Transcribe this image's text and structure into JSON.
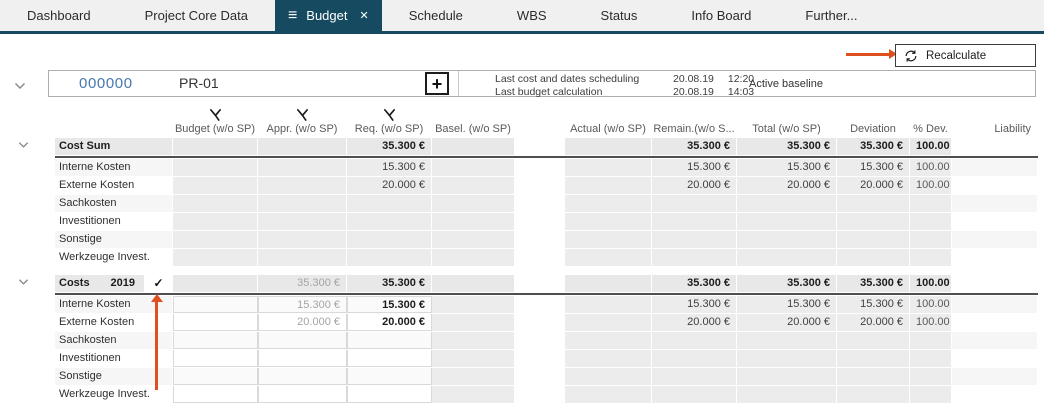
{
  "tabs": [
    {
      "label": "Dashboard"
    },
    {
      "label": "Project Core Data"
    },
    {
      "label": "Budget",
      "active": true
    },
    {
      "label": "Schedule"
    },
    {
      "label": "WBS"
    },
    {
      "label": "Status"
    },
    {
      "label": "Info Board"
    },
    {
      "label": "Further..."
    }
  ],
  "toolbar": {
    "recalculate": "Recalculate"
  },
  "project": {
    "number": "000000",
    "name": "PR-01",
    "info_rows": [
      {
        "label": "Last cost and dates scheduling",
        "date": "20.08.19",
        "time": "12:20"
      },
      {
        "label": "Last budget calculation",
        "date": "20.08.19",
        "time": "14:03"
      }
    ],
    "baseline_status": "Active baseline"
  },
  "table": {
    "columns": {
      "budget": "Budget (w/o SP)",
      "appr": "Appr. (w/o SP)",
      "req": "Req. (w/o SP)",
      "basel": "Basel. (w/o SP)",
      "actual": "Actual (w/o SP)",
      "remain": "Remain.(w/o S...",
      "total": "Total (w/o SP)",
      "deviation": "Deviation",
      "pdev": "% Dev.",
      "liability": "Liability"
    },
    "sections": [
      {
        "title": "Cost Sum",
        "year": "",
        "checked": false,
        "totals": {
          "req": "35.300 €",
          "remain": "35.300 €",
          "total": "35.300 €",
          "deviation": "35.300 €",
          "pdev": "100.00 %"
        },
        "rows": [
          {
            "label": "Interne Kosten",
            "req": "15.300 €",
            "remain": "15.300 €",
            "total": "15.300 €",
            "deviation": "15.300 €",
            "pdev": "100.00 %"
          },
          {
            "label": "Externe Kosten",
            "req": "20.000 €",
            "remain": "20.000 €",
            "total": "20.000 €",
            "deviation": "20.000 €",
            "pdev": "100.00 %"
          },
          {
            "label": "Sachkosten"
          },
          {
            "label": "Investitionen"
          },
          {
            "label": "Sonstige"
          },
          {
            "label": "Werkzeuge Invest."
          }
        ]
      },
      {
        "title": "Costs",
        "year": "2019",
        "checked": true,
        "totals": {
          "appr": "35.300 €",
          "req": "35.300 €",
          "remain": "35.300 €",
          "total": "35.300 €",
          "deviation": "35.300 €",
          "pdev": "100.00 %"
        },
        "rows": [
          {
            "label": "Interne Kosten",
            "appr": "15.300 €",
            "req": "15.300 €",
            "remain": "15.300 €",
            "total": "15.300 €",
            "deviation": "15.300 €",
            "pdev": "100.00 %"
          },
          {
            "label": "Externe Kosten",
            "appr": "20.000 €",
            "req": "20.000 €",
            "remain": "20.000 €",
            "total": "20.000 €",
            "deviation": "20.000 €",
            "pdev": "100.00 %"
          },
          {
            "label": "Sachkosten"
          },
          {
            "label": "Investitionen"
          },
          {
            "label": "Sonstige"
          },
          {
            "label": "Werkzeuge Invest."
          }
        ]
      }
    ]
  }
}
